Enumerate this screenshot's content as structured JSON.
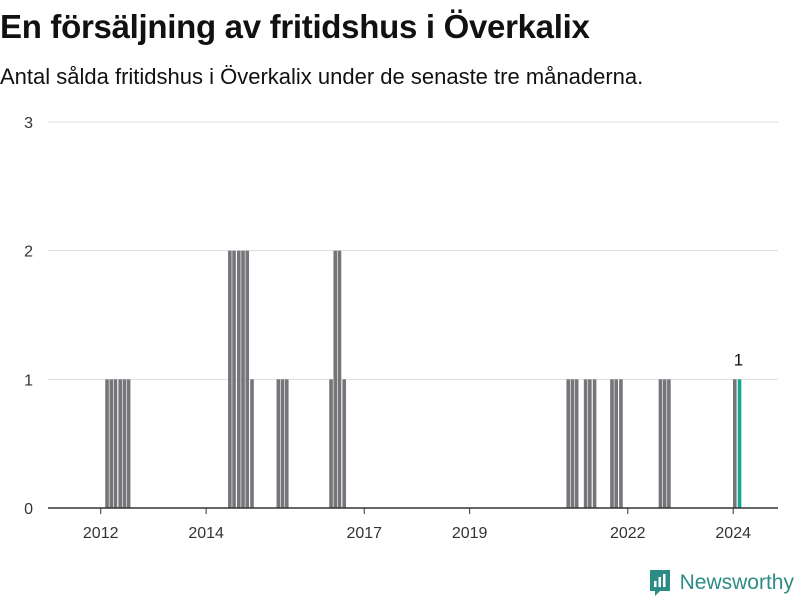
{
  "header": {
    "title": "En försäljning av fritidshus i Överkalix",
    "subtitle": "Antal sålda fritidshus i Överkalix under de senaste tre månaderna."
  },
  "brand": {
    "name": "Newsworthy",
    "icon": "newsworthy-logo-icon"
  },
  "colors": {
    "bar": "#75757a",
    "highlight": "#1aa39a",
    "grid": "#dddddd",
    "axis": "#333333"
  },
  "chart_data": {
    "type": "bar",
    "title": "En försäljning av fritidshus i Överkalix",
    "subtitle": "Antal sålda fritidshus i Överkalix under de senaste tre månaderna.",
    "xlabel": "",
    "ylabel": "",
    "ylim": [
      0,
      3
    ],
    "yticks": [
      0,
      1,
      2,
      3
    ],
    "xlim": [
      2011.0,
      2024.85
    ],
    "xticks": [
      {
        "value": 2012.0,
        "label": "2012"
      },
      {
        "value": 2014.0,
        "label": "2014"
      },
      {
        "value": 2017.0,
        "label": "2017"
      },
      {
        "value": 2019.0,
        "label": "2019"
      },
      {
        "value": 2022.0,
        "label": "2022"
      },
      {
        "value": 2024.0,
        "label": "2024"
      }
    ],
    "grid": true,
    "bars": [
      {
        "x": 2012.12,
        "value": 1
      },
      {
        "x": 2012.2,
        "value": 1
      },
      {
        "x": 2012.28,
        "value": 1
      },
      {
        "x": 2012.37,
        "value": 1
      },
      {
        "x": 2012.45,
        "value": 1
      },
      {
        "x": 2012.53,
        "value": 1
      },
      {
        "x": 2014.45,
        "value": 2
      },
      {
        "x": 2014.53,
        "value": 2
      },
      {
        "x": 2014.62,
        "value": 2
      },
      {
        "x": 2014.7,
        "value": 2
      },
      {
        "x": 2014.78,
        "value": 2
      },
      {
        "x": 2014.87,
        "value": 1
      },
      {
        "x": 2015.37,
        "value": 1
      },
      {
        "x": 2015.45,
        "value": 1
      },
      {
        "x": 2015.53,
        "value": 1
      },
      {
        "x": 2016.37,
        "value": 1
      },
      {
        "x": 2016.45,
        "value": 2
      },
      {
        "x": 2016.53,
        "value": 2
      },
      {
        "x": 2016.62,
        "value": 1
      },
      {
        "x": 2020.87,
        "value": 1
      },
      {
        "x": 2020.95,
        "value": 1
      },
      {
        "x": 2021.03,
        "value": 1
      },
      {
        "x": 2021.2,
        "value": 1
      },
      {
        "x": 2021.28,
        "value": 1
      },
      {
        "x": 2021.37,
        "value": 1
      },
      {
        "x": 2021.7,
        "value": 1
      },
      {
        "x": 2021.78,
        "value": 1
      },
      {
        "x": 2021.87,
        "value": 1
      },
      {
        "x": 2022.62,
        "value": 1
      },
      {
        "x": 2022.7,
        "value": 1
      },
      {
        "x": 2022.78,
        "value": 1
      },
      {
        "x": 2024.03,
        "value": 1
      },
      {
        "x": 2024.12,
        "value": 1,
        "highlight": true,
        "label": "1"
      }
    ]
  }
}
